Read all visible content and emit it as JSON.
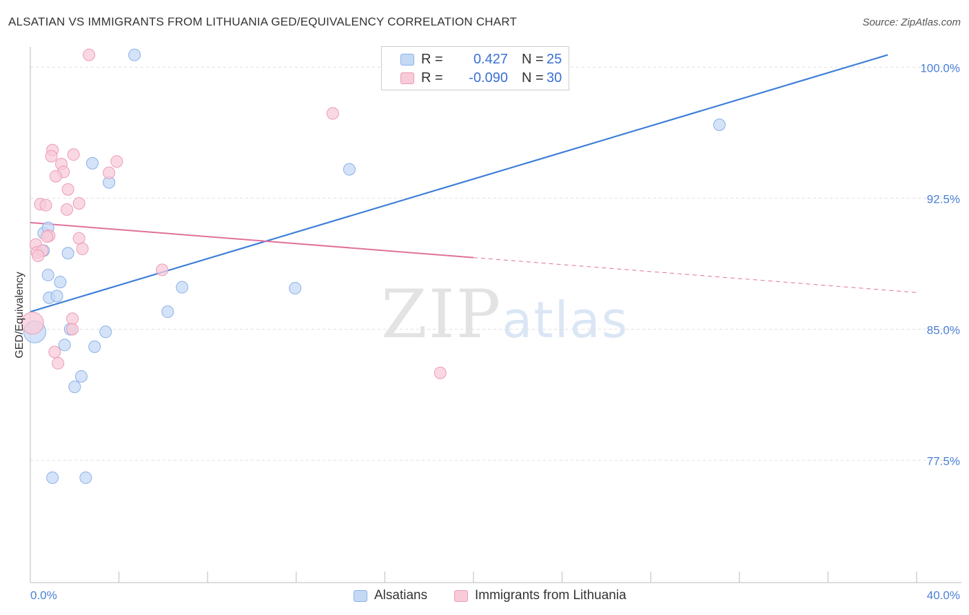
{
  "title": "ALSATIAN VS IMMIGRANTS FROM LITHUANIA GED/EQUIVALENCY CORRELATION CHART",
  "source": "Source: ZipAtlas.com",
  "watermark": {
    "zip": "ZIP",
    "atlas": "atlas"
  },
  "legend": {
    "rows": [
      {
        "r_label": "R =",
        "r_value": "0.427",
        "n_label": "N =",
        "n_value": "25"
      },
      {
        "r_label": "R =",
        "r_value": "-0.090",
        "n_label": "N =",
        "n_value": "30"
      }
    ]
  },
  "bottom_legend": [
    "Alsatians",
    "Immigrants from Lithuania"
  ],
  "colors": {
    "blue_fill": "#c5d9f5",
    "blue_stroke": "#8ab0e8",
    "blue_line": "#3d7fd9",
    "pink_fill": "#f8cbd9",
    "pink_stroke": "#ec9ab5",
    "pink_line": "#e0709a",
    "grid": "#e0e0e0",
    "axis_text": "#4a7fd6"
  },
  "chart_data": {
    "type": "scatter",
    "title": "ALSATIAN VS IMMIGRANTS FROM LITHUANIA GED/EQUIVALENCY CORRELATION CHART",
    "xlabel": "",
    "ylabel": "GED/Equivalency",
    "xlim": [
      0,
      40
    ],
    "ylim": [
      70.5,
      101
    ],
    "x_tick_labels": [
      "0.0%",
      "40.0%"
    ],
    "y_ticks": [
      77.5,
      85.0,
      92.5,
      100.0
    ],
    "y_tick_labels": [
      "77.5%",
      "85.0%",
      "92.5%",
      "100.0%"
    ],
    "grid": true,
    "series": [
      {
        "name": "Alsatians",
        "r": 0.427,
        "n": 25,
        "trend": {
          "x": [
            0,
            38.7
          ],
          "y": [
            86.0,
            100.7
          ],
          "dashed_from": null
        },
        "points": [
          [
            4.7,
            100.7
          ],
          [
            0.2,
            84.85
          ],
          [
            0.6,
            90.5
          ],
          [
            0.6,
            89.5
          ],
          [
            0.8,
            90.8
          ],
          [
            0.8,
            88.1
          ],
          [
            0.85,
            86.8
          ],
          [
            1.2,
            86.9
          ],
          [
            1.35,
            87.7
          ],
          [
            1.55,
            84.1
          ],
          [
            1.7,
            89.35
          ],
          [
            1.8,
            85.0
          ],
          [
            2.0,
            81.7
          ],
          [
            2.3,
            82.3
          ],
          [
            2.8,
            94.5
          ],
          [
            2.9,
            84.0
          ],
          [
            3.4,
            84.85
          ],
          [
            3.55,
            93.4
          ],
          [
            6.2,
            86.0
          ],
          [
            6.85,
            87.4
          ],
          [
            11.95,
            87.35
          ],
          [
            14.4,
            94.15
          ],
          [
            31.1,
            96.7
          ],
          [
            1.0,
            76.5
          ],
          [
            2.5,
            76.5
          ]
        ]
      },
      {
        "name": "Immigrants from Lithuania",
        "r": -0.09,
        "n": 30,
        "trend": {
          "x": [
            0,
            40
          ],
          "y": [
            91.1,
            87.1
          ],
          "dashed_from": 20
        },
        "points": [
          [
            2.65,
            100.7
          ],
          [
            13.65,
            97.35
          ],
          [
            1.0,
            95.25
          ],
          [
            1.95,
            95.0
          ],
          [
            0.95,
            94.9
          ],
          [
            3.9,
            94.6
          ],
          [
            1.4,
            94.45
          ],
          [
            3.55,
            93.95
          ],
          [
            1.5,
            94.0
          ],
          [
            1.15,
            93.75
          ],
          [
            1.7,
            93.0
          ],
          [
            0.45,
            92.15
          ],
          [
            0.7,
            92.1
          ],
          [
            2.2,
            92.2
          ],
          [
            1.65,
            91.85
          ],
          [
            0.85,
            90.35
          ],
          [
            0.75,
            90.3
          ],
          [
            2.2,
            90.2
          ],
          [
            0.25,
            89.85
          ],
          [
            2.35,
            89.6
          ],
          [
            0.3,
            89.4
          ],
          [
            0.55,
            89.5
          ],
          [
            0.35,
            89.2
          ],
          [
            5.95,
            88.4
          ],
          [
            1.9,
            85.6
          ],
          [
            1.9,
            85.0
          ],
          [
            1.1,
            83.7
          ],
          [
            1.25,
            83.05
          ],
          [
            18.5,
            82.5
          ],
          [
            0.1,
            85.35
          ]
        ]
      }
    ]
  }
}
